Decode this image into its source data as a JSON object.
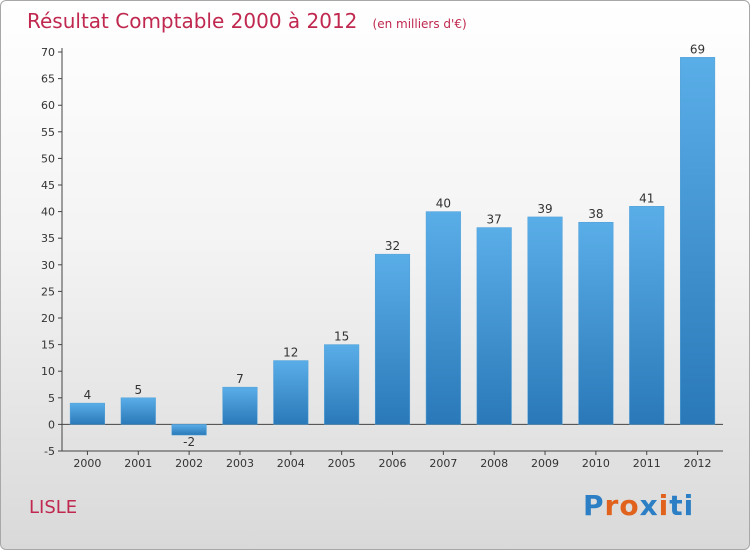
{
  "header": {
    "title": "Résultat Comptable 2000 à 2012",
    "unit": "(en milliers d'€)"
  },
  "footer": {
    "place": "LISLE",
    "brand": "Proxiti"
  },
  "colors": {
    "bar_light": "#5aaee8",
    "bar_dark": "#2a78b8",
    "title": "#c0284f",
    "brand_letters": [
      "#2c7fc4",
      "#e0621c",
      "#e0621c",
      "#2c7fc4",
      "#e0621c",
      "#2c7fc4",
      "#2c7fc4"
    ]
  },
  "chart_data": {
    "type": "bar",
    "title": "Résultat Comptable 2000 à 2012",
    "subtitle": "(en milliers d'€)",
    "categories": [
      "2000",
      "2001",
      "2002",
      "2003",
      "2004",
      "2005",
      "2006",
      "2007",
      "2008",
      "2009",
      "2010",
      "2011",
      "2012"
    ],
    "values": [
      4,
      5,
      -2,
      7,
      12,
      15,
      32,
      40,
      37,
      39,
      38,
      41,
      69
    ],
    "ylim": [
      -5,
      70
    ],
    "yticks": [
      -5,
      0,
      5,
      10,
      15,
      20,
      25,
      30,
      35,
      40,
      45,
      50,
      55,
      60,
      65,
      70
    ],
    "grid": false,
    "legend": "none"
  }
}
